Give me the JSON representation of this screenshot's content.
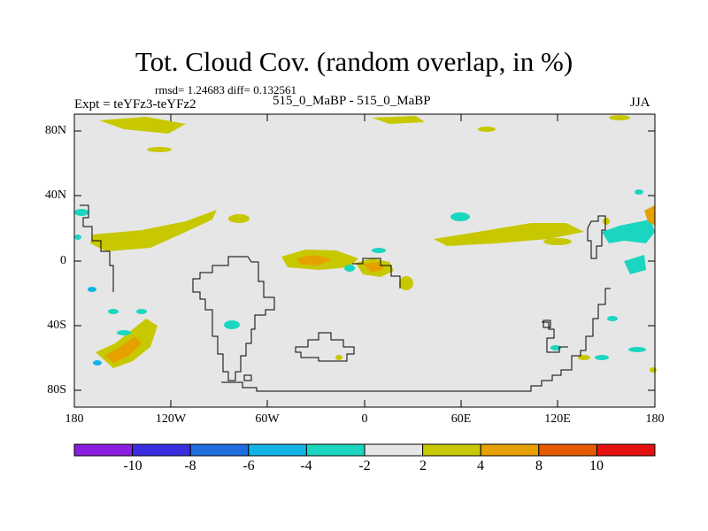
{
  "title": "Tot. Cloud Cov. (random overlap, in %)",
  "stats": "rmsd= 1.24683 diff= 0.132561",
  "experiment": "Expt = teYFz3-teYFz2",
  "runs": "515_0_MaBP - 515_0_MaBP",
  "season": "JJA",
  "lat_labels": [
    "80N",
    "40N",
    "0",
    "40S",
    "80S"
  ],
  "lon_labels": [
    "180",
    "120W",
    "60W",
    "0",
    "60E",
    "120E",
    "180"
  ],
  "colorbar": {
    "labels": [
      "-10",
      "-8",
      "-6",
      "-4",
      "-2",
      "2",
      "4",
      "8",
      "10"
    ],
    "colors": [
      "#8a1ee0",
      "#3a2ee0",
      "#1e6ee0",
      "#12b4e6",
      "#1ad6c0",
      "#e6e6e6",
      "#c8c800",
      "#e6a000",
      "#e65a00",
      "#e61010"
    ]
  },
  "colors": {
    "background": "#e6e6e6",
    "pos_small": "#c8c800",
    "pos_mid": "#e6a000",
    "pos_high": "#e65a00",
    "neg_small": "#1ad6c0",
    "neg_mid": "#12b4e6"
  }
}
